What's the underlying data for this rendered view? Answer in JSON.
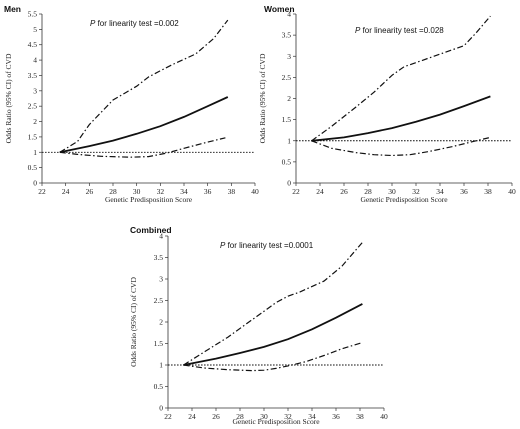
{
  "chart_data": [
    {
      "type": "line",
      "title": "Men",
      "annotation": {
        "prefix": "P",
        "text": " for linearity test =0.002"
      },
      "xlabel": "Genetic Predisposition Score",
      "ylabel": "Odds Ratio (95% CI) of CVD",
      "xlim": [
        22,
        40
      ],
      "ylim": [
        0,
        5.5
      ],
      "xticks": [
        "22",
        "24",
        "26",
        "28",
        "30",
        "32",
        "34",
        "36",
        "38",
        "40"
      ],
      "yticks": [
        "0",
        "0.5",
        "1",
        "1.5",
        "2",
        "2.5",
        "3",
        "3.5",
        "4",
        "4.5",
        "5",
        "5.5"
      ],
      "reference_line": 1,
      "series": [
        {
          "style": "solid",
          "x": [
            23.5,
            26,
            28,
            30,
            32,
            34,
            36,
            37.7
          ],
          "y": [
            1.0,
            1.2,
            1.38,
            1.6,
            1.85,
            2.15,
            2.5,
            2.8
          ]
        },
        {
          "style": "dashdot",
          "x": [
            23.5,
            25,
            26,
            28,
            30,
            31,
            32,
            33,
            35,
            36.5,
            37.7
          ],
          "y": [
            1.0,
            1.35,
            1.9,
            2.7,
            3.15,
            3.45,
            3.65,
            3.85,
            4.2,
            4.7,
            5.3
          ]
        },
        {
          "style": "dashdot",
          "x": [
            23.5,
            25,
            27,
            29.5,
            31,
            32.5,
            34,
            36,
            37.5
          ],
          "y": [
            1.0,
            0.93,
            0.87,
            0.84,
            0.86,
            0.97,
            1.13,
            1.33,
            1.47
          ]
        }
      ]
    },
    {
      "type": "line",
      "title": "Women",
      "annotation": {
        "prefix": "P",
        "text": " for linearity test =0.028"
      },
      "xlabel": "Genetic Predisposition Score",
      "ylabel": "Odds Ratio (95% CI) of CVD",
      "xlim": [
        22,
        40
      ],
      "ylim": [
        0,
        4
      ],
      "xticks": [
        "22",
        "24",
        "26",
        "28",
        "30",
        "32",
        "34",
        "36",
        "38",
        "40"
      ],
      "yticks": [
        "0",
        "0.5",
        "1",
        "1.5",
        "2",
        "2.5",
        "3",
        "3.5",
        "4"
      ],
      "reference_line": 1,
      "series": [
        {
          "style": "solid",
          "x": [
            23.3,
            26,
            28,
            30,
            32,
            34,
            36,
            38.2
          ],
          "y": [
            1.0,
            1.08,
            1.18,
            1.3,
            1.45,
            1.62,
            1.82,
            2.05
          ]
        },
        {
          "style": "dashdot",
          "x": [
            23.3,
            25,
            27,
            28.5,
            30,
            31,
            32,
            34,
            36,
            37,
            38.2
          ],
          "y": [
            1.0,
            1.35,
            1.8,
            2.15,
            2.55,
            2.75,
            2.85,
            3.05,
            3.25,
            3.55,
            3.95
          ]
        },
        {
          "style": "dashdot",
          "x": [
            23.3,
            25,
            27,
            28.5,
            30,
            31.5,
            33,
            35,
            37,
            38.2
          ],
          "y": [
            1.0,
            0.82,
            0.72,
            0.67,
            0.65,
            0.67,
            0.74,
            0.86,
            1.0,
            1.08
          ]
        }
      ]
    },
    {
      "type": "line",
      "title": "Combined",
      "annotation": {
        "prefix": "P",
        "text": " for linearity test =0.0001"
      },
      "xlabel": "Genetic Predisposition Score",
      "ylabel": "Odds Ratio (95% CI) of CVD",
      "xlim": [
        22,
        40
      ],
      "ylim": [
        0,
        4
      ],
      "xticks": [
        "22",
        "24",
        "26",
        "28",
        "30",
        "32",
        "34",
        "36",
        "38",
        "40"
      ],
      "yticks": [
        "0",
        "0.5",
        "1",
        "1.5",
        "2",
        "2.5",
        "3",
        "3.5",
        "4"
      ],
      "reference_line": 1,
      "series": [
        {
          "style": "solid",
          "x": [
            23.3,
            26,
            28,
            30,
            32,
            34,
            36,
            38.2
          ],
          "y": [
            1.0,
            1.15,
            1.28,
            1.42,
            1.6,
            1.83,
            2.1,
            2.42
          ]
        },
        {
          "style": "dashdot",
          "x": [
            23.3,
            25,
            27,
            28.5,
            30,
            31,
            32,
            33,
            35,
            36.5,
            38.2
          ],
          "y": [
            1.0,
            1.3,
            1.65,
            1.95,
            2.25,
            2.45,
            2.6,
            2.7,
            2.95,
            3.3,
            3.85
          ]
        },
        {
          "style": "dashdot",
          "x": [
            23.3,
            25,
            27,
            29,
            30,
            31,
            32,
            33.5,
            35,
            36.5,
            38.2
          ],
          "y": [
            1.0,
            0.93,
            0.89,
            0.87,
            0.88,
            0.92,
            0.98,
            1.08,
            1.22,
            1.38,
            1.52
          ]
        }
      ]
    }
  ]
}
